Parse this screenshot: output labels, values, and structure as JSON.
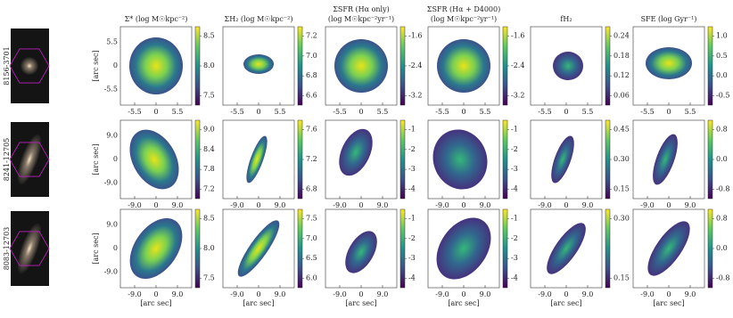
{
  "columns": [
    {
      "title": [
        "Σ* (log M☉kpc⁻²)"
      ]
    },
    {
      "title": [
        "ΣH₂ (log M☉kpc⁻²)"
      ]
    },
    {
      "title": [
        "ΣSFR (Hα only)",
        "(log M☉kpc⁻²yr⁻¹)"
      ]
    },
    {
      "title": [
        "ΣSFR (Hα + D4000)",
        "(log M☉kpc⁻²yr⁻¹)"
      ]
    },
    {
      "title": [
        "fH₂"
      ]
    },
    {
      "title": [
        "SFE (log Gyr⁻¹)"
      ]
    }
  ],
  "axis_label": "[arc sec]",
  "rows": [
    {
      "label": "8156-3701",
      "xticks": [
        "-5.5",
        "0",
        "5.5"
      ],
      "yticks": [
        "5.5",
        "0",
        "-5.5"
      ],
      "cbar_ticks": [
        [
          "8.5",
          "8.0",
          "7.5"
        ],
        [
          "7.2",
          "7.0",
          "6.8",
          "6.6"
        ],
        [
          "-1.6",
          "-2.4",
          "-3.2"
        ],
        [
          "-1.6",
          "-2.4",
          "-3.2"
        ],
        [
          "0.24",
          "0.18",
          "0.12",
          "0.06"
        ],
        [
          "1.0",
          "0.5",
          "0.0",
          "-0.5"
        ]
      ]
    },
    {
      "label": "8241-12705",
      "xticks": [
        "-9.0",
        "0",
        "9.0"
      ],
      "yticks": [
        "9.0",
        "0",
        "-9.0"
      ],
      "cbar_ticks": [
        [
          "9.0",
          "8.4",
          "7.8",
          "7.2"
        ],
        [
          "7.6",
          "7.2",
          "6.8"
        ],
        [
          "-1",
          "-2",
          "-3",
          "-4"
        ],
        [
          "-1",
          "-2",
          "-3",
          "-4"
        ],
        [
          "0.45",
          "0.30",
          "0.15"
        ],
        [
          "0.8",
          "0.0",
          "-0.8"
        ]
      ]
    },
    {
      "label": "8083-12703",
      "xticks": [
        "-9.0",
        "0",
        "9.0"
      ],
      "yticks": [
        "9.0",
        "0",
        "-9.0"
      ],
      "cbar_ticks": [
        [
          "8.5",
          "8.0",
          "7.5"
        ],
        [
          "7.5",
          "7.0",
          "6.5",
          "6.0"
        ],
        [
          "-1",
          "-2",
          "-3",
          "-4"
        ],
        [
          "-1",
          "-2",
          "-3",
          "-4"
        ],
        [
          "0.30",
          "0.15"
        ],
        [
          "0.8",
          "0.0",
          "-0.8"
        ]
      ]
    }
  ]
}
